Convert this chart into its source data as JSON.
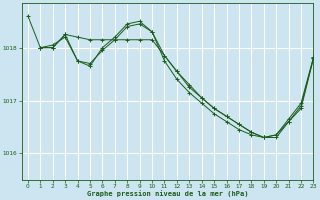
{
  "title": "Graphe pression niveau de la mer (hPa)",
  "bg_color": "#cce5f0",
  "line_color": "#1a5c1a",
  "grid_color": "#ffffff",
  "xlabel_color": "#1a5c1a",
  "xlim": [
    -0.5,
    23
  ],
  "ylim": [
    1015.5,
    1018.85
  ],
  "yticks": [
    1016,
    1017,
    1018
  ],
  "xticks": [
    0,
    1,
    2,
    3,
    4,
    5,
    6,
    7,
    8,
    9,
    10,
    11,
    12,
    13,
    14,
    15,
    16,
    17,
    18,
    19,
    20,
    21,
    22,
    23
  ],
  "series": [
    {
      "x": [
        0,
        1,
        2,
        3,
        4,
        5,
        6,
        7,
        8,
        9,
        10,
        11,
        12,
        13,
        14,
        15,
        16,
        17,
        18,
        19,
        20,
        21,
        22,
        23
      ],
      "y": [
        1018.6,
        1018.0,
        1018.0,
        1018.25,
        1018.2,
        1018.15,
        1018.15,
        1018.15,
        1018.15,
        1018.15,
        1018.15,
        1017.85,
        1017.55,
        1017.25,
        1017.05,
        1016.85,
        1016.7,
        1016.55,
        1016.4,
        1016.3,
        1016.3,
        1016.6,
        1016.85,
        1017.8
      ]
    },
    {
      "x": [
        1,
        2,
        3,
        4,
        5,
        6,
        7,
        8,
        9,
        10,
        11,
        12,
        13,
        14,
        15,
        16,
        17,
        18,
        19,
        20,
        21,
        22,
        23
      ],
      "y": [
        1018.0,
        1018.0,
        1018.25,
        1017.75,
        1017.7,
        1017.95,
        1018.15,
        1018.4,
        1018.45,
        1018.3,
        1017.75,
        1017.4,
        1017.15,
        1016.95,
        1016.75,
        1016.6,
        1016.45,
        1016.35,
        1016.3,
        1016.35,
        1016.6,
        1016.9,
        1017.8
      ]
    },
    {
      "x": [
        1,
        2,
        3,
        4,
        5,
        6,
        7,
        8,
        9,
        10,
        11,
        12,
        13,
        14,
        15,
        16,
        17,
        18,
        19,
        20,
        21,
        22,
        23
      ],
      "y": [
        1018.0,
        1018.05,
        1018.2,
        1017.75,
        1017.65,
        1018.0,
        1018.2,
        1018.45,
        1018.5,
        1018.3,
        1017.85,
        1017.55,
        1017.3,
        1017.05,
        1016.85,
        1016.7,
        1016.55,
        1016.4,
        1016.3,
        1016.35,
        1016.65,
        1016.95,
        1017.82
      ]
    }
  ]
}
